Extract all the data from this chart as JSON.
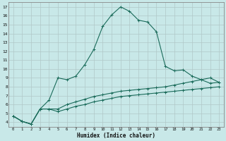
{
  "xlabel": "Humidex (Indice chaleur)",
  "xlim": [
    -0.5,
    23.5
  ],
  "ylim": [
    3.5,
    17.5
  ],
  "xtick_labels": [
    "0",
    "1",
    "2",
    "3",
    "4",
    "5",
    "6",
    "7",
    "8",
    "9",
    "10",
    "11",
    "12",
    "13",
    "14",
    "15",
    "16",
    "17",
    "18",
    "19",
    "20",
    "21",
    "22",
    "23"
  ],
  "ytick_labels": [
    "4",
    "5",
    "6",
    "7",
    "8",
    "9",
    "10",
    "11",
    "12",
    "13",
    "14",
    "15",
    "16",
    "17"
  ],
  "background_color": "#c8e8e8",
  "line_color": "#1a6b5a",
  "grid_color": "#aaaaaa",
  "series1_x": [
    0,
    1,
    2,
    3,
    4,
    5,
    6,
    7,
    8,
    9,
    10,
    11,
    12,
    13,
    14,
    15,
    16,
    17,
    18,
    19,
    20,
    21,
    22,
    23
  ],
  "series1_y": [
    4.7,
    4.1,
    3.8,
    5.5,
    6.5,
    9.0,
    8.8,
    9.2,
    10.5,
    12.2,
    14.8,
    16.1,
    17.0,
    16.5,
    15.5,
    15.3,
    14.2,
    10.3,
    9.8,
    9.9,
    9.2,
    8.8,
    8.4,
    8.5
  ],
  "series2_x": [
    0,
    1,
    2,
    3,
    4,
    5,
    6,
    7,
    8,
    9,
    10,
    11,
    12,
    13,
    14,
    15,
    16,
    17,
    18,
    19,
    20,
    21,
    22,
    23
  ],
  "series2_y": [
    4.7,
    4.1,
    3.8,
    5.5,
    5.5,
    5.5,
    6.0,
    6.3,
    6.6,
    6.9,
    7.1,
    7.3,
    7.5,
    7.6,
    7.7,
    7.8,
    7.9,
    8.0,
    8.2,
    8.4,
    8.6,
    8.8,
    9.0,
    8.5
  ],
  "series3_x": [
    0,
    1,
    2,
    3,
    4,
    5,
    6,
    7,
    8,
    9,
    10,
    11,
    12,
    13,
    14,
    15,
    16,
    17,
    18,
    19,
    20,
    21,
    22,
    23
  ],
  "series3_y": [
    4.7,
    4.1,
    3.8,
    5.5,
    5.5,
    5.2,
    5.5,
    5.8,
    6.0,
    6.3,
    6.5,
    6.7,
    6.9,
    7.0,
    7.1,
    7.2,
    7.3,
    7.4,
    7.5,
    7.6,
    7.7,
    7.8,
    7.9,
    8.0
  ]
}
